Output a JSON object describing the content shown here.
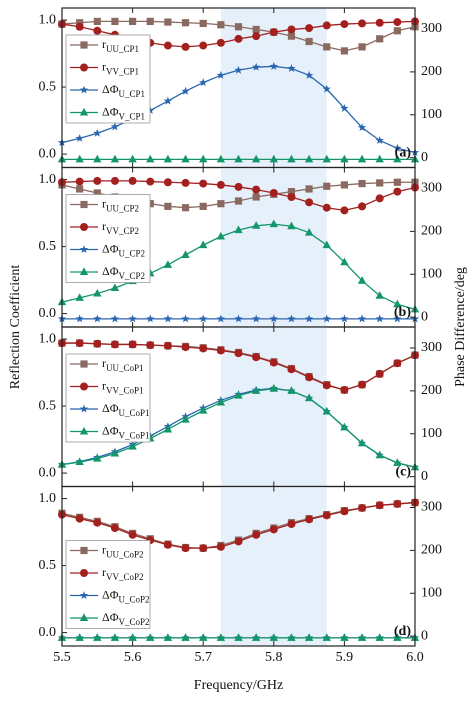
{
  "chart_data": [
    {
      "type": "line",
      "label": "(a)",
      "legend": "upper left",
      "ylabel": "Reflection Coefficient",
      "y2label": "Phase Difference/deg",
      "xlim": [
        5.5,
        6.0
      ],
      "highlight": [
        5.725,
        5.875
      ],
      "ylim": [
        -0.1,
        1.09
      ],
      "yticks": [
        {
          "value": 0,
          "label": "0.0"
        },
        0.5,
        {
          "value": 1,
          "label": "1.0"
        }
      ],
      "y2lim": [
        -23,
        349
      ],
      "y2ticks": [
        0,
        100,
        200,
        300
      ],
      "x": [
        5.5,
        5.525,
        5.55,
        5.575,
        5.6,
        5.625,
        5.65,
        5.675,
        5.7,
        5.725,
        5.75,
        5.775,
        5.8,
        5.825,
        5.85,
        5.875,
        5.9,
        5.925,
        5.95,
        5.975,
        6.0
      ],
      "series": [
        {
          "name": "rUU_CP1",
          "color": "#8a6a60",
          "marker": "square",
          "values": [
            0.97,
            0.98,
            0.99,
            0.99,
            0.99,
            0.99,
            0.985,
            0.98,
            0.975,
            0.965,
            0.95,
            0.93,
            0.91,
            0.88,
            0.84,
            0.8,
            0.77,
            0.8,
            0.86,
            0.92,
            0.95
          ]
        },
        {
          "name": "rVV_CP1",
          "color": "#a3201f",
          "marker": "circle",
          "values": [
            0.97,
            0.95,
            0.92,
            0.89,
            0.86,
            0.83,
            0.81,
            0.8,
            0.81,
            0.83,
            0.86,
            0.88,
            0.91,
            0.93,
            0.94,
            0.96,
            0.97,
            0.975,
            0.98,
            0.985,
            0.99
          ]
        },
        {
          "name": "ΔΦU_CP1",
          "color": "#2a66b0",
          "marker": "star",
          "axis": "y2",
          "values": [
            35,
            45,
            57,
            72,
            90,
            110,
            132,
            155,
            175,
            192,
            204,
            211,
            213,
            208,
            192,
            160,
            115,
            70,
            40,
            22,
            12
          ]
        },
        {
          "name": "ΔΦV_CP1",
          "color": "#13966a",
          "marker": "triangle",
          "axis": "y2",
          "values": [
            -4,
            -4,
            -4,
            -4,
            -4,
            -4,
            -4,
            -4,
            -4,
            -4,
            -4,
            -4,
            -4,
            -4,
            -4,
            -4,
            -4,
            -4,
            -4,
            -4,
            -4
          ]
        }
      ]
    },
    {
      "type": "line",
      "label": "(b)",
      "legend": "upper left",
      "xlim": [
        5.5,
        6.0
      ],
      "highlight": [
        5.725,
        5.875
      ],
      "ylim": [
        -0.1,
        1.09
      ],
      "yticks": [
        {
          "value": 0,
          "label": "0.0"
        },
        0.5,
        {
          "value": 1,
          "label": "1.0"
        }
      ],
      "y2lim": [
        -23,
        349
      ],
      "y2ticks": [
        0,
        100,
        200,
        300
      ],
      "x": [
        5.5,
        5.525,
        5.55,
        5.575,
        5.6,
        5.625,
        5.65,
        5.675,
        5.7,
        5.725,
        5.75,
        5.775,
        5.8,
        5.825,
        5.85,
        5.875,
        5.9,
        5.925,
        5.95,
        5.975,
        6.0
      ],
      "series": [
        {
          "name": "rUU_CP2",
          "color": "#8a6a60",
          "marker": "square",
          "values": [
            0.96,
            0.93,
            0.9,
            0.87,
            0.84,
            0.82,
            0.8,
            0.79,
            0.8,
            0.82,
            0.84,
            0.87,
            0.89,
            0.91,
            0.93,
            0.95,
            0.96,
            0.97,
            0.975,
            0.98,
            0.98
          ]
        },
        {
          "name": "rVV_CP2",
          "color": "#a3201f",
          "marker": "circle",
          "values": [
            0.98,
            0.985,
            0.99,
            0.99,
            0.99,
            0.985,
            0.98,
            0.975,
            0.97,
            0.96,
            0.945,
            0.925,
            0.9,
            0.87,
            0.83,
            0.79,
            0.77,
            0.8,
            0.86,
            0.91,
            0.94
          ]
        },
        {
          "name": "ΔΦU_CP2",
          "color": "#2a66b0",
          "marker": "star",
          "axis": "y2",
          "values": [
            -4,
            -4,
            -4,
            -4,
            -4,
            -4,
            -4,
            -4,
            -4,
            -4,
            -4,
            -4,
            -4,
            -4,
            -4,
            -4,
            -4,
            -4,
            -4,
            -4,
            -4
          ]
        },
        {
          "name": "ΔΦV_CP2",
          "color": "#13966a",
          "marker": "triangle",
          "axis": "y2",
          "values": [
            35,
            45,
            55,
            68,
            84,
            102,
            122,
            145,
            168,
            188,
            203,
            213,
            217,
            212,
            197,
            168,
            128,
            85,
            50,
            30,
            18
          ]
        }
      ]
    },
    {
      "type": "line",
      "label": "(c)",
      "legend": "upper left",
      "xlim": [
        5.5,
        6.0
      ],
      "highlight": [
        5.725,
        5.875
      ],
      "ylim": [
        -0.1,
        1.09
      ],
      "yticks": [
        {
          "value": 0,
          "label": "0.0"
        },
        0.5,
        {
          "value": 1,
          "label": "1.0"
        }
      ],
      "y2lim": [
        -23,
        349
      ],
      "y2ticks": [
        0,
        100,
        200,
        300
      ],
      "x": [
        5.5,
        5.525,
        5.55,
        5.575,
        5.6,
        5.625,
        5.65,
        5.675,
        5.7,
        5.725,
        5.75,
        5.775,
        5.8,
        5.825,
        5.85,
        5.875,
        5.9,
        5.925,
        5.95,
        5.975,
        6.0
      ],
      "series": [
        {
          "name": "rUU_CoP1",
          "color": "#8a6a60",
          "marker": "square",
          "values": [
            0.97,
            0.97,
            0.965,
            0.96,
            0.96,
            0.955,
            0.95,
            0.945,
            0.935,
            0.92,
            0.9,
            0.87,
            0.83,
            0.78,
            0.72,
            0.66,
            0.62,
            0.66,
            0.74,
            0.82,
            0.88
          ]
        },
        {
          "name": "rVV_CoP1",
          "color": "#a3201f",
          "marker": "circle",
          "values": [
            0.97,
            0.97,
            0.965,
            0.96,
            0.96,
            0.955,
            0.95,
            0.94,
            0.93,
            0.915,
            0.895,
            0.865,
            0.825,
            0.775,
            0.715,
            0.655,
            0.62,
            0.66,
            0.74,
            0.82,
            0.88
          ]
        },
        {
          "name": "ΔΦU_CoP1",
          "color": "#2a66b0",
          "marker": "star",
          "axis": "y2",
          "values": [
            28,
            35,
            45,
            58,
            75,
            95,
            117,
            140,
            160,
            178,
            192,
            202,
            206,
            200,
            183,
            152,
            115,
            78,
            50,
            32,
            22
          ]
        },
        {
          "name": "ΔΦV_CoP1",
          "color": "#13966a",
          "marker": "triangle",
          "axis": "y2",
          "values": [
            28,
            34,
            42,
            54,
            70,
            89,
            110,
            133,
            154,
            173,
            189,
            200,
            205,
            200,
            183,
            152,
            115,
            78,
            50,
            32,
            22
          ]
        }
      ]
    },
    {
      "type": "line",
      "label": "(d)",
      "legend": "center left",
      "xlabel": "Frequency/GHz",
      "xlim": [
        5.5,
        6.0
      ],
      "xticks": [
        5.5,
        5.6,
        5.7,
        5.8,
        5.9,
        {
          "value": 6,
          "label": "6.0"
        }
      ],
      "highlight": [
        5.725,
        5.875
      ],
      "ylim": [
        -0.1,
        1.09
      ],
      "yticks": [
        {
          "value": 0,
          "label": "0.0"
        },
        0.5,
        {
          "value": 1,
          "label": "1.0"
        }
      ],
      "y2lim": [
        -23,
        349
      ],
      "y2ticks": [
        0,
        100,
        200,
        300
      ],
      "x": [
        5.5,
        5.525,
        5.55,
        5.575,
        5.6,
        5.625,
        5.65,
        5.675,
        5.7,
        5.725,
        5.75,
        5.775,
        5.8,
        5.825,
        5.85,
        5.875,
        5.9,
        5.925,
        5.95,
        5.975,
        6.0
      ],
      "series": [
        {
          "name": "rUU_CoP2",
          "color": "#8a6a60",
          "marker": "square",
          "values": [
            0.89,
            0.86,
            0.83,
            0.79,
            0.74,
            0.7,
            0.66,
            0.635,
            0.63,
            0.65,
            0.69,
            0.74,
            0.78,
            0.82,
            0.85,
            0.88,
            0.91,
            0.93,
            0.95,
            0.96,
            0.97
          ]
        },
        {
          "name": "rVV_CoP2",
          "color": "#a3201f",
          "marker": "circle",
          "values": [
            0.88,
            0.85,
            0.82,
            0.78,
            0.73,
            0.69,
            0.655,
            0.63,
            0.63,
            0.64,
            0.68,
            0.73,
            0.77,
            0.81,
            0.845,
            0.875,
            0.905,
            0.93,
            0.95,
            0.96,
            0.97
          ]
        },
        {
          "name": "ΔΦU_CoP2",
          "color": "#2a66b0",
          "marker": "star",
          "axis": "y2",
          "values": [
            -4,
            -4,
            -4,
            -4,
            -4,
            -4,
            -4,
            -4,
            -4,
            -4,
            -4,
            -4,
            -4,
            -4,
            -4,
            -4,
            -4,
            -4,
            -4,
            -4,
            -4
          ]
        },
        {
          "name": "ΔΦV_CoP2",
          "color": "#13966a",
          "marker": "triangle",
          "axis": "y2",
          "values": [
            -4,
            -4,
            -4,
            -4,
            -4,
            -4,
            -4,
            -4,
            -4,
            -4,
            -4,
            -4,
            -4,
            -4,
            -4,
            -4,
            -4,
            -4,
            -4,
            -4,
            -4
          ]
        }
      ]
    }
  ]
}
